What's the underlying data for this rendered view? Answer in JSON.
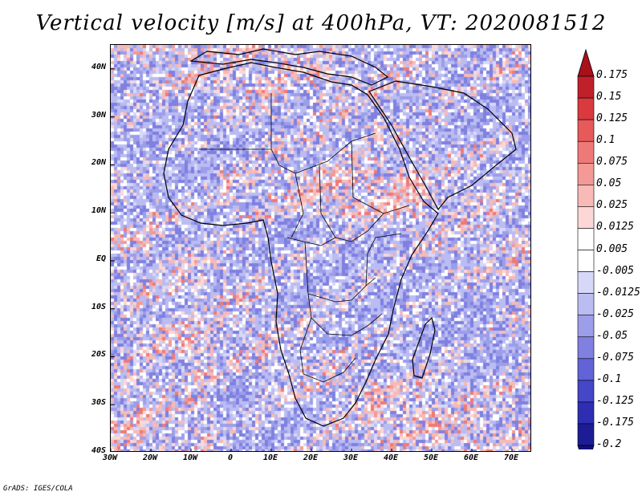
{
  "title": "Vertical velocity [m/s] at 400hPa, VT: 2020081512",
  "credit": "GrADS: IGES/COLA",
  "map": {
    "lat_labels": [
      "40N",
      "30N",
      "20N",
      "10N",
      "EQ",
      "10S",
      "20S",
      "30S",
      "40S"
    ],
    "lon_labels": [
      "30W",
      "20W",
      "10W",
      "0",
      "10E",
      "20E",
      "30E",
      "40E",
      "50E",
      "60E",
      "70E"
    ],
    "lat_range": [
      -40,
      45
    ],
    "lon_range": [
      -30,
      75
    ]
  },
  "colorbar": {
    "levels": [
      "0.175",
      "0.15",
      "0.125",
      "0.1",
      "0.075",
      "0.05",
      "0.025",
      "0.0125",
      "0.005",
      "-0.005",
      "-0.0125",
      "-0.025",
      "-0.05",
      "-0.075",
      "-0.1",
      "-0.125",
      "-0.175",
      "-0.2"
    ],
    "colors": [
      "#a8101a",
      "#c0202a",
      "#d83a3e",
      "#e65a5a",
      "#ee7a78",
      "#f39a96",
      "#f7bab6",
      "#fbd8d5",
      "#ffffff",
      "#ffffff",
      "#d7d8f8",
      "#babcf2",
      "#9c9eea",
      "#7f80e0",
      "#6263d6",
      "#4546c8",
      "#2d2eb4",
      "#1c1c96",
      "#120f7a"
    ]
  },
  "colors": {
    "negative_base": "#b9bcf2",
    "positive_base": "#f3a9a5",
    "boundary": "#000000"
  }
}
